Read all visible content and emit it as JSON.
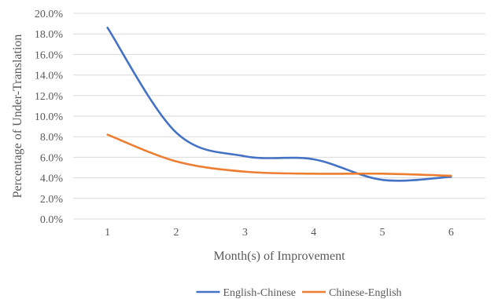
{
  "chart_data": {
    "type": "line",
    "smooth": true,
    "title": "",
    "xlabel": "Month(s) of Improvement",
    "ylabel": "Percentage of Under-Translation",
    "categories": [
      "1",
      "2",
      "3",
      "4",
      "5",
      "6"
    ],
    "ylim": [
      0,
      20
    ],
    "yticks": [
      "0.0%",
      "2.0%",
      "4.0%",
      "6.0%",
      "8.0%",
      "10.0%",
      "12.0%",
      "14.0%",
      "16.0%",
      "18.0%",
      "20.0%"
    ],
    "grid": "horizontal",
    "legend_position": "bottom",
    "series": [
      {
        "name": "English-Chinese",
        "color": "#4472C4",
        "values": [
          18.6,
          8.4,
          6.1,
          5.8,
          3.8,
          4.1
        ]
      },
      {
        "name": "Chinese-English",
        "color": "#ED7D31",
        "values": [
          8.2,
          5.6,
          4.6,
          4.4,
          4.4,
          4.2
        ]
      }
    ]
  }
}
